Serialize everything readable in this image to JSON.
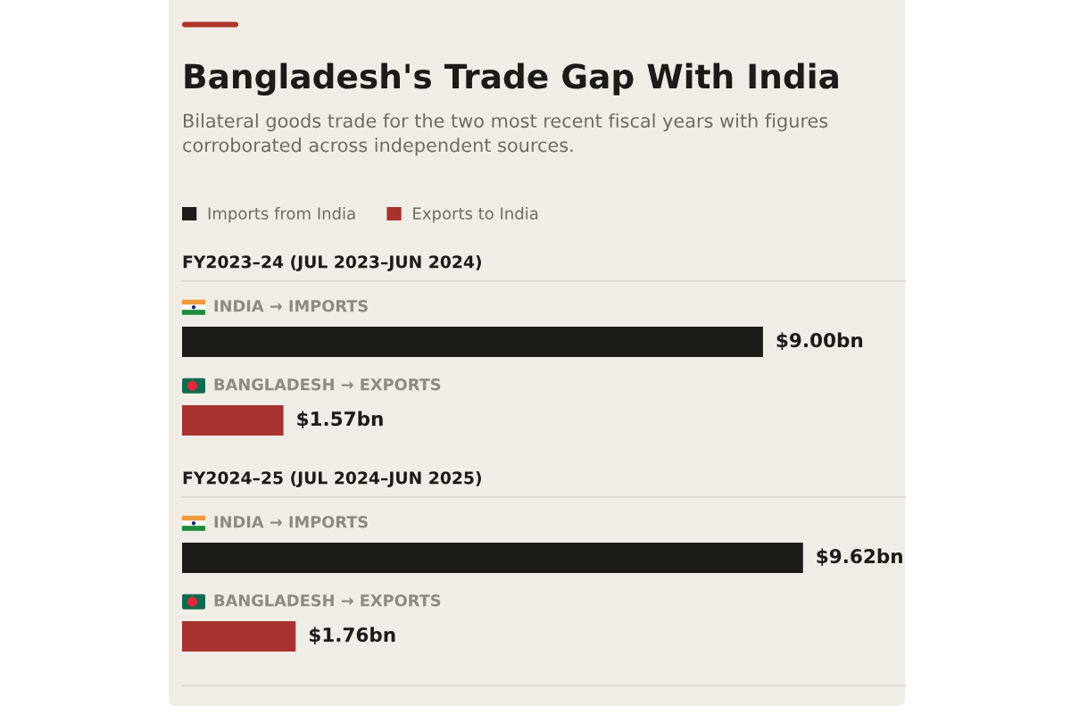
{
  "chart_data": [
    {
      "type": "other",
      "title": "Bangladesh's Trade Gap With India",
      "subtitle": "Bilateral goods trade for the two most recent fiscal years with figures\ncorroborated across independent sources."
    },
    {
      "type": "bar",
      "orientation": "horizontal",
      "title": "FY2023–24 (JUL 2023–JUN 2024)",
      "categories": [
        "INDIA → IMPORTS",
        "BANGLADESH → EXPORTS"
      ],
      "series": [
        {
          "name": "Imports from India",
          "color": "#1d1b17",
          "values": [
            9.0,
            null
          ],
          "value_labels": [
            "$9.00bn",
            null
          ]
        },
        {
          "name": "Exports to India",
          "color": "#a8322d",
          "values": [
            null,
            1.57
          ],
          "value_labels": [
            null,
            "$1.57bn"
          ]
        }
      ],
      "xlim": [
        0,
        11.2
      ],
      "tick_labels": "y",
      "legend": "top left"
    },
    {
      "type": "bar",
      "orientation": "horizontal",
      "title": "FY2024–25 (JUL 2024–JUN 2025)",
      "categories": [
        "INDIA → IMPORTS",
        "BANGLADESH → EXPORTS"
      ],
      "series": [
        {
          "color": "#1d1b17",
          "values": [
            9.62,
            null
          ],
          "value_labels": [
            "$9.62bn",
            null
          ]
        },
        {
          "color": "#a8322d",
          "values": [
            null,
            1.76
          ],
          "value_labels": [
            null,
            "$1.76bn"
          ]
        }
      ],
      "xlim": [
        0,
        11.2
      ],
      "tick_labels": "y"
    }
  ]
}
